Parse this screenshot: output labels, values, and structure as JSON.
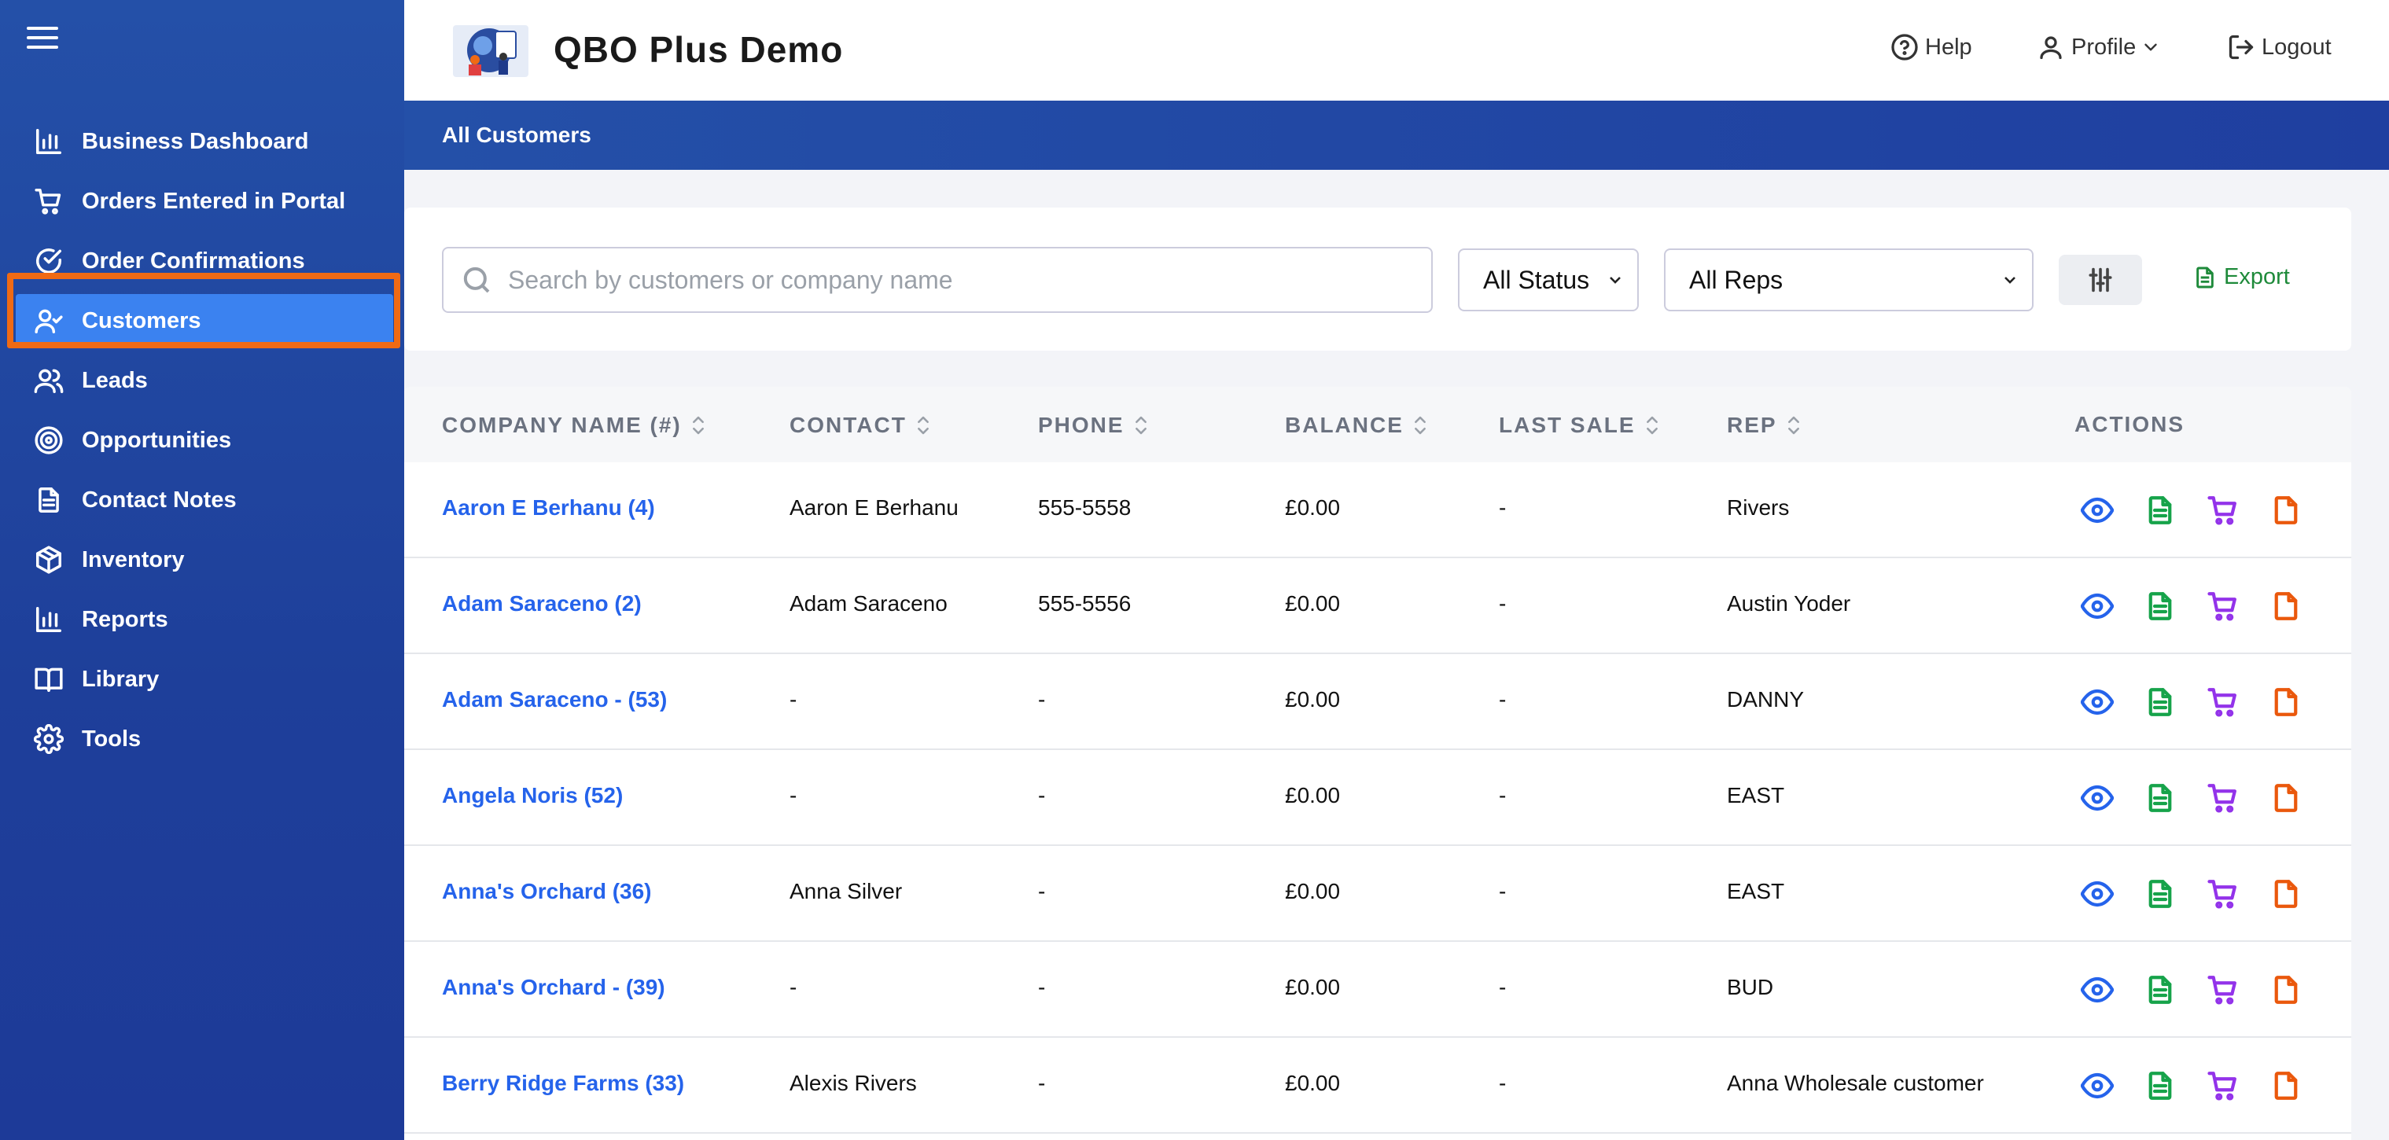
{
  "app": {
    "brand": "QBO Plus Demo"
  },
  "header": {
    "help_label": "Help",
    "profile_label": "Profile",
    "logout_label": "Logout"
  },
  "sidebar": {
    "items": [
      {
        "label": "Business Dashboard",
        "icon": "bar-chart-icon"
      },
      {
        "label": "Orders Entered in Portal",
        "icon": "cart-icon"
      },
      {
        "label": "Order Confirmations",
        "icon": "check-circle-icon"
      },
      {
        "label": "Customers",
        "icon": "user-check-icon",
        "active": true
      },
      {
        "label": "Leads",
        "icon": "users-icon"
      },
      {
        "label": "Opportunities",
        "icon": "target-icon"
      },
      {
        "label": "Contact Notes",
        "icon": "document-icon"
      },
      {
        "label": "Inventory",
        "icon": "box-icon"
      },
      {
        "label": "Reports",
        "icon": "bar-chart-icon"
      },
      {
        "label": "Library",
        "icon": "book-icon"
      },
      {
        "label": "Tools",
        "icon": "gear-icon"
      }
    ]
  },
  "page": {
    "title": "All Customers"
  },
  "filters": {
    "search_placeholder": "Search by customers or company name",
    "status_value": "All Status",
    "reps_value": "All Reps",
    "export_label": "Export"
  },
  "table": {
    "columns": [
      "COMPANY NAME (#)",
      "CONTACT",
      "PHONE",
      "BALANCE",
      "LAST SALE",
      "REP",
      "ACTIONS"
    ],
    "rows": [
      {
        "company": "Aaron E Berhanu (4)",
        "contact": "Aaron E Berhanu",
        "phone": "555-5558",
        "balance": "£0.00",
        "last_sale": "-",
        "rep": "Rivers"
      },
      {
        "company": "Adam Saraceno (2)",
        "contact": "Adam Saraceno",
        "phone": "555-5556",
        "balance": "£0.00",
        "last_sale": "-",
        "rep": "Austin Yoder"
      },
      {
        "company": "Adam Saraceno - (53)",
        "contact": "-",
        "phone": "-",
        "balance": "£0.00",
        "last_sale": "-",
        "rep": "DANNY"
      },
      {
        "company": "Angela Noris (52)",
        "contact": "-",
        "phone": "-",
        "balance": "£0.00",
        "last_sale": "-",
        "rep": "EAST"
      },
      {
        "company": "Anna's Orchard (36)",
        "contact": "Anna Silver",
        "phone": "-",
        "balance": "£0.00",
        "last_sale": "-",
        "rep": "EAST"
      },
      {
        "company": "Anna's Orchard - (39)",
        "contact": "-",
        "phone": "-",
        "balance": "£0.00",
        "last_sale": "-",
        "rep": "BUD"
      },
      {
        "company": "Berry Ridge Farms (33)",
        "contact": "Alexis Rivers",
        "phone": "-",
        "balance": "£0.00",
        "last_sale": "-",
        "rep": "Anna Wholesale customer"
      }
    ],
    "action_icons": [
      "eye-icon",
      "invoice-icon",
      "cart-icon",
      "note-icon"
    ],
    "action_colors": [
      "#2563eb",
      "#16a34a",
      "#9333ea",
      "#ea580c"
    ]
  },
  "colors": {
    "sidebar": "#2450a8",
    "active_item": "#3b82f0",
    "highlight_outline": "#f06a14",
    "link": "#2563eb",
    "export": "#1e8a3a"
  }
}
